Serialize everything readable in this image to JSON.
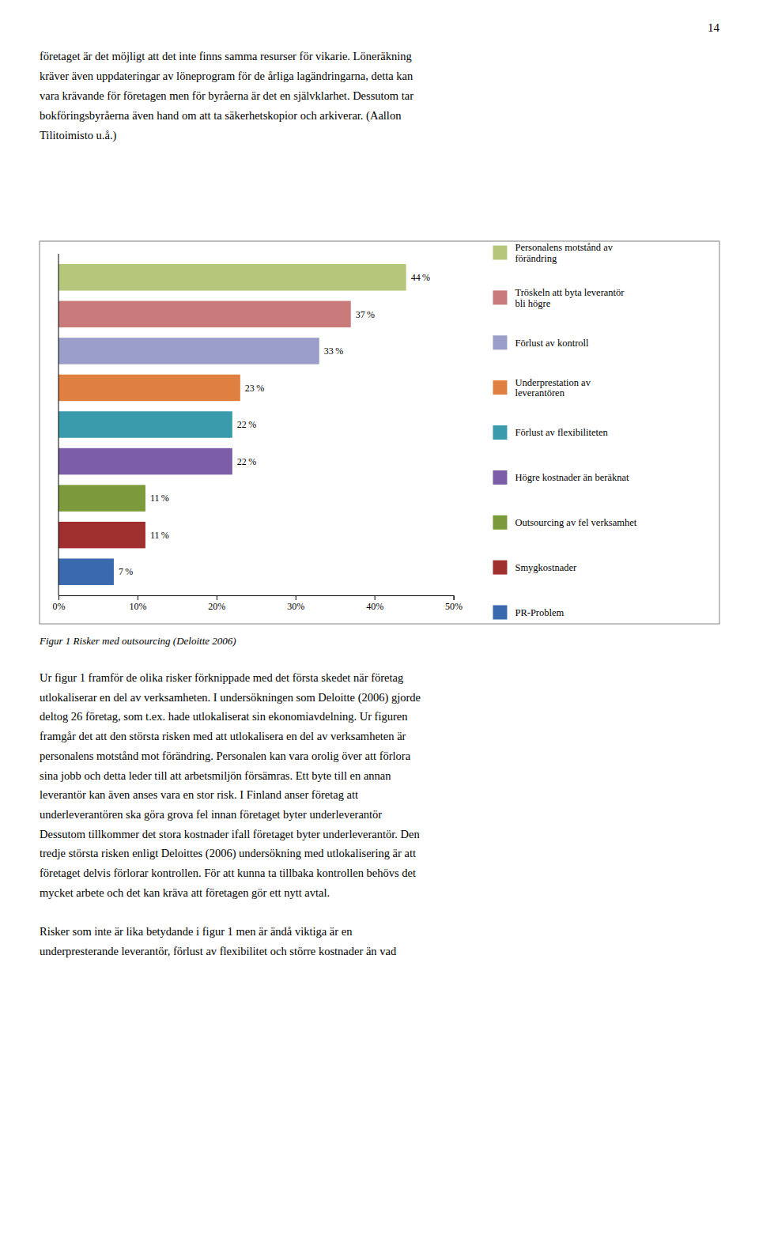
{
  "page_number": "14",
  "top_text_lines": [
    "företaget är det möjligt att det inte finns samma resurser för vikarie. Löneräkning",
    "kräver även uppdateringar av löneprogram för de årliga lagändringarna, detta kan",
    "vara krävande för företagen men för byråerna är det en självklarhet. Dessutom tar",
    "bokföringsbyråerna även hand om att ta säkerhetskopior och arkiverar. (Aallon",
    "Tilitoimisto u.å.)"
  ],
  "bottom_text_paragraphs": [
    [
      "Ur figur 1 framför de olika risker förknippade med det första skedet när företag",
      "utlokaliserar en del av verksamheten. I undersökningen som Deloitte (2006) gjorde",
      "deltog 26 företag, som t.ex. hade utlokaliserat sin ekonomiavdelning. Ur figuren",
      "framgår det att den största risken med att utlokalisera en del av verksamheten är",
      "personalens motstånd mot förändring. Personalen kan vara orolig över att förlora",
      "sina jobb och detta leder till att arbetsmiljön försämras. Ett byte till en annan",
      "leverantör kan även anses vara en stor risk. I Finland anser företag att",
      "underleverantören ska göra grova fel innan företaget byter underleverantör",
      "Dessutom tillkommer det stora kostnader ifall företaget byter underleverantör. Den",
      "tredje största risken enligt Deloittes (2006) undersökning med utlokalisering är att",
      "företaget delvis förlorar kontrollen. För att kunna ta tillbaka kontrollen behövs det",
      "mycket arbete och det kan kräva att företagen gör ett nytt avtal."
    ],
    [
      "Risker som inte är lika betydande i figur 1 men är ändå viktiga är en",
      "underpresterande leverantör, förlust av flexibilitet och större kostnader än vad"
    ]
  ],
  "chart_data": {
    "type": "bar",
    "orientation": "horizontal",
    "title": "Figur 1 Risker med outsourcing (Deloitte 2006)",
    "categories": [
      "Personalens motstånd av\nförändring",
      "Tröskeln att byta leverantör\nbli högre",
      "Förlust av kontroll",
      "Underprestation av\nleverantören",
      "Förlust av flexibiliteten",
      "Högre kostnader än beräknat",
      "Outsourcing av fel verksamhet",
      "Smygkostnader",
      "PR-Problem"
    ],
    "values": [
      44,
      37,
      33,
      23,
      22,
      22,
      11,
      11,
      7
    ],
    "value_labels": [
      "44 %",
      "37 %",
      "33 %",
      "23 %",
      "22 %",
      "22 %",
      "11 %",
      "11 %",
      "7 %"
    ],
    "colors": [
      "#b5c77a",
      "#c97b7b",
      "#9b9ec8",
      "#e08040",
      "#3a9bad",
      "#7b5ea7",
      "#7b9a3a",
      "#a03030",
      "#3a6aad"
    ],
    "xlim": [
      0,
      50
    ],
    "xticks": [
      {
        "value": 0,
        "label": "0%"
      },
      {
        "value": 10,
        "label": "10%"
      },
      {
        "value": 20,
        "label": "20%"
      },
      {
        "value": 30,
        "label": "30%"
      },
      {
        "value": 40,
        "label": "40%"
      },
      {
        "value": 50,
        "label": "50%"
      }
    ],
    "data_labels": true,
    "tick_labels": "x",
    "grid": false,
    "legend": "right"
  }
}
